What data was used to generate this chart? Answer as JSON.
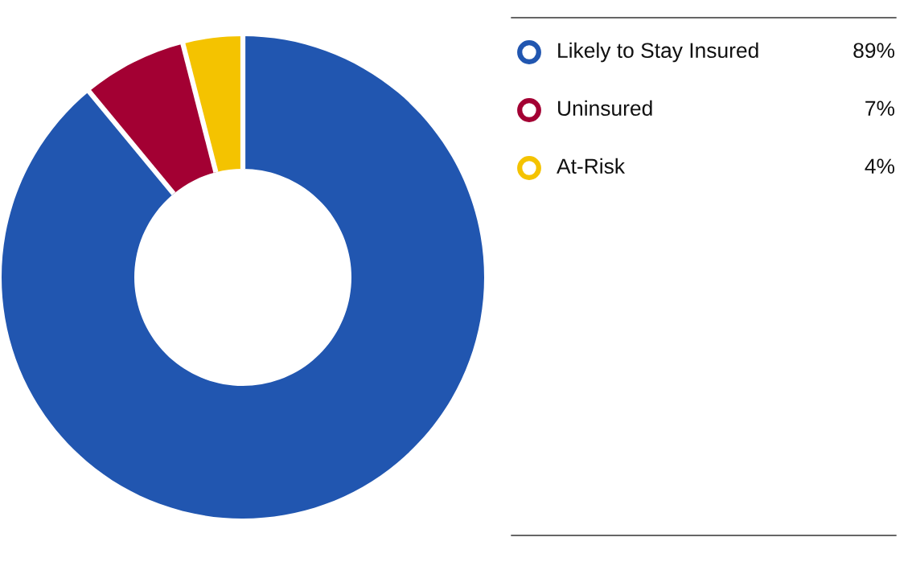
{
  "chart_data": {
    "type": "donut",
    "categories": [
      "Likely to Stay Insured",
      "Uninsured",
      "At-Risk"
    ],
    "values": [
      89,
      7,
      4
    ],
    "colors": [
      "#2156b0",
      "#a30033",
      "#f4c300"
    ],
    "value_labels": [
      "89%",
      "7%",
      "4%"
    ],
    "legend": "top right"
  }
}
